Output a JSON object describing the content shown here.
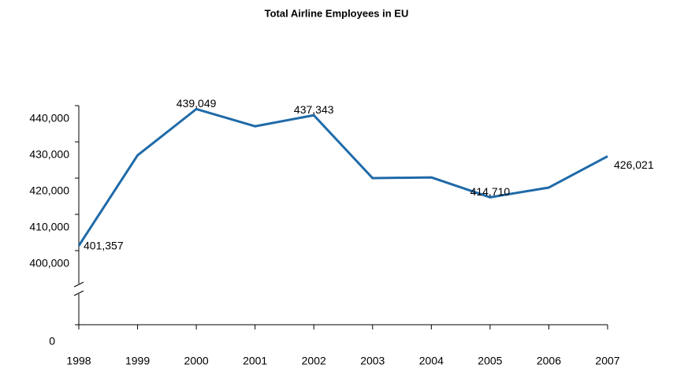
{
  "chart_data": {
    "type": "line",
    "title": "Total Airline Employees in EU",
    "categories": [
      "1998",
      "1999",
      "2000",
      "2001",
      "2002",
      "2003",
      "2004",
      "2005",
      "2006",
      "2007"
    ],
    "series": [
      {
        "name": "Total Airline Employees",
        "color": "#1f6aa8",
        "values": [
          401357,
          426300,
          439049,
          434300,
          437343,
          420000,
          420200,
          414710,
          417400,
          426021
        ],
        "value_labels": [
          "401,357",
          null,
          "439,049",
          null,
          "437,343",
          null,
          null,
          "414,710",
          null,
          "426,021"
        ]
      }
    ],
    "ylim": [
      0,
      440000
    ],
    "yticks": [
      0,
      {
        "value": 400000,
        "label": "400,000"
      },
      {
        "value": 410000,
        "label": "410,000"
      },
      {
        "value": 420000,
        "label": "420,000"
      },
      {
        "value": 430000,
        "label": "430,000"
      },
      {
        "value": 440000,
        "label": "440,000"
      }
    ],
    "axis_break": true
  }
}
